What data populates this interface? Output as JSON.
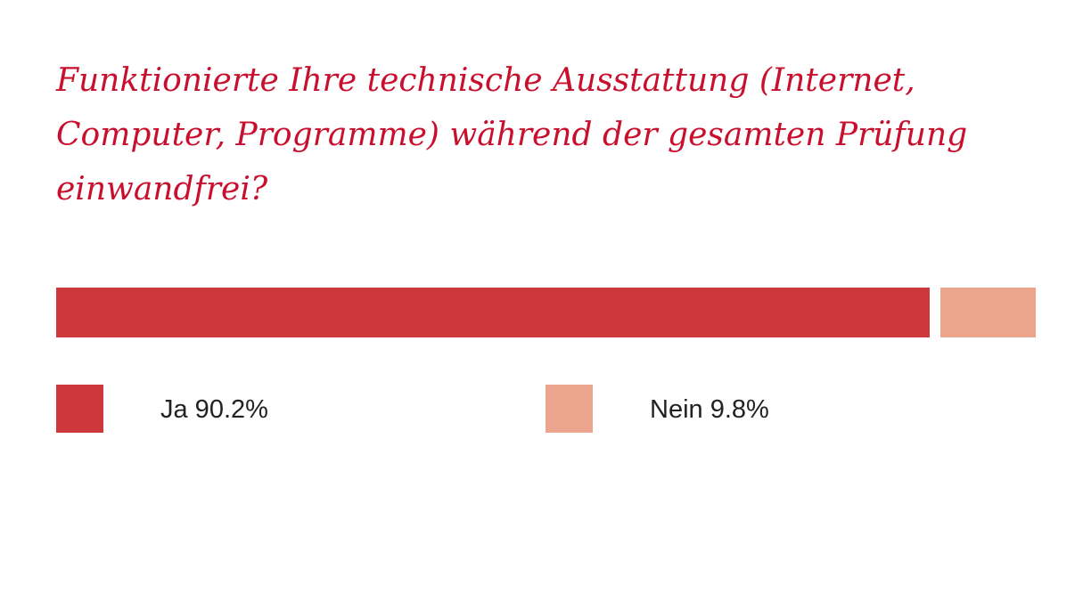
{
  "chart_data": {
    "type": "bar",
    "orientation": "horizontal-stacked",
    "title": "Funktionierte Ihre technische Ausstattung (Internet, Computer, Programme) während der gesamten Prüfung einwandfrei?",
    "unit": "%",
    "categories": [
      "Ja",
      "Nein"
    ],
    "values": [
      90.2,
      9.8
    ],
    "colors": [
      "#cc383c",
      "#eba58c"
    ],
    "legend_labels": [
      "Ja 90.2%",
      "Nein 9.8%"
    ],
    "legend_placement": "bottom",
    "xlabel": "",
    "ylabel": "",
    "grid": false
  }
}
